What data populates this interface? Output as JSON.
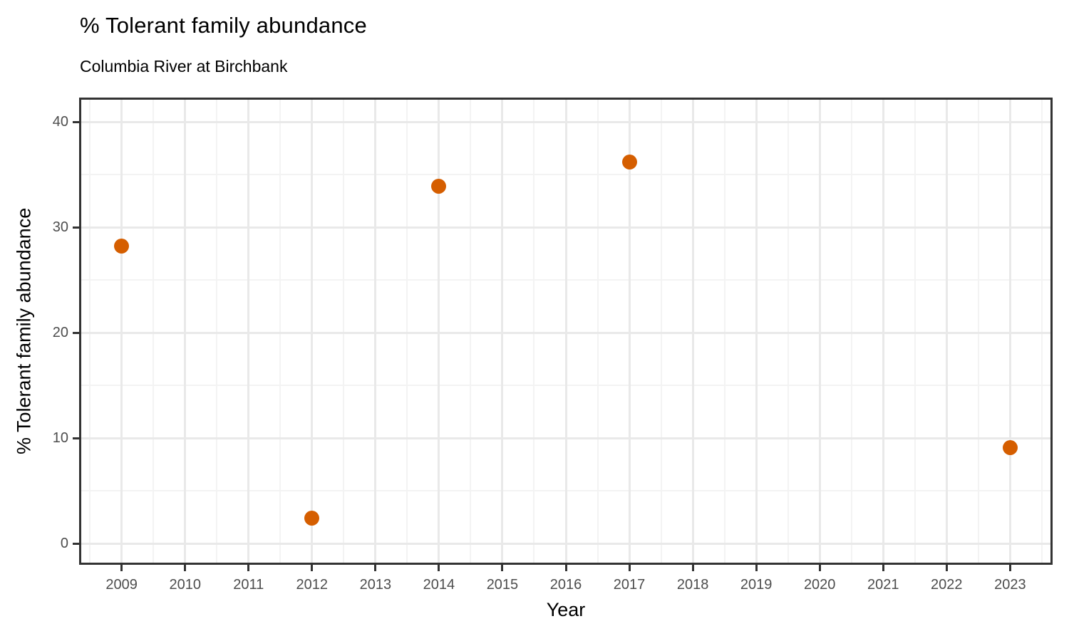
{
  "page": {
    "background": "#ffffff"
  },
  "colors": {
    "point": "#D55E00",
    "panel_border": "#333333",
    "tick_mark": "#333333",
    "tick_label": "#4d4d4d",
    "grid_major": "#e9e9e9",
    "grid_minor": "#f3f3f3",
    "title_text": "#000000"
  },
  "chart_data": {
    "type": "scatter",
    "title": "% Tolerant family abundance",
    "subtitle": "Columbia River at Birchbank",
    "xlabel": "Year",
    "ylabel": "% Tolerant family abundance",
    "x_ticks": [
      2009,
      2010,
      2011,
      2012,
      2013,
      2014,
      2015,
      2016,
      2017,
      2018,
      2019,
      2020,
      2021,
      2022,
      2023
    ],
    "y_ticks": [
      0,
      10,
      20,
      30,
      40
    ],
    "xlim": [
      2008.33,
      2023.67
    ],
    "ylim": [
      -2.0,
      42.3
    ],
    "grid": {
      "major": true,
      "minor": true,
      "major_color": "#e9e9e9",
      "minor_color": "#f3f3f3"
    },
    "legend": "none",
    "series": [
      {
        "name": "% Tolerant family abundance",
        "marker": "circle",
        "color": "#D55E00",
        "points": [
          {
            "x": 2009,
            "y": 28.2
          },
          {
            "x": 2012,
            "y": 2.4
          },
          {
            "x": 2014,
            "y": 33.9
          },
          {
            "x": 2017,
            "y": 36.2
          },
          {
            "x": 2023,
            "y": 9.1
          }
        ]
      }
    ]
  }
}
